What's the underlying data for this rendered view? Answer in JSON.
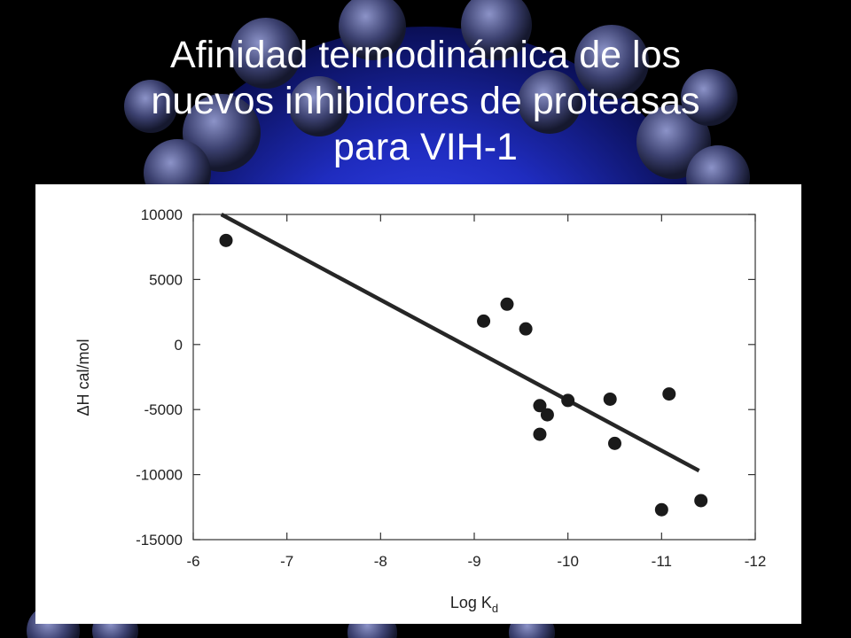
{
  "slide": {
    "title_lines": [
      "Afinidad termodinámica de los",
      "nuevos inhibidores de proteasas",
      "para VIH-1"
    ]
  },
  "colors": {
    "background": "#000000",
    "virus_blue": "#2233cc",
    "panel": "#ffffff",
    "marker": "#1a1a1a",
    "fit_line": "#262626"
  },
  "chart_data": {
    "type": "scatter",
    "xlabel": "Log K",
    "xlabel_subscript": "d",
    "ylabel": "ΔH  cal/mol",
    "xlim": [
      -6,
      -12
    ],
    "ylim": [
      -15000,
      10000
    ],
    "x_reversed": true,
    "x_ticks": [
      "-6",
      "-7",
      "-8",
      "-9",
      "-10",
      "-11",
      "-12"
    ],
    "y_ticks": [
      "10000",
      "5000",
      "0",
      "-5000",
      "-10000",
      "-15000"
    ],
    "grid": false,
    "series": [
      {
        "points": [
          {
            "x": -6.35,
            "y": 8000
          },
          {
            "x": -9.1,
            "y": 1800
          },
          {
            "x": -9.35,
            "y": 3100
          },
          {
            "x": -9.55,
            "y": 1200
          },
          {
            "x": -9.7,
            "y": -4700
          },
          {
            "x": -9.78,
            "y": -5400
          },
          {
            "x": -9.7,
            "y": -6900
          },
          {
            "x": -10.0,
            "y": -4300
          },
          {
            "x": -10.45,
            "y": -4200
          },
          {
            "x": -10.5,
            "y": -7600
          },
          {
            "x": -11.08,
            "y": -3800
          },
          {
            "x": -11.0,
            "y": -12700
          },
          {
            "x": -11.42,
            "y": -12000
          }
        ]
      }
    ],
    "fit_line": {
      "x": [
        -6.3,
        -11.4
      ],
      "y": [
        10000,
        -9700
      ]
    }
  }
}
